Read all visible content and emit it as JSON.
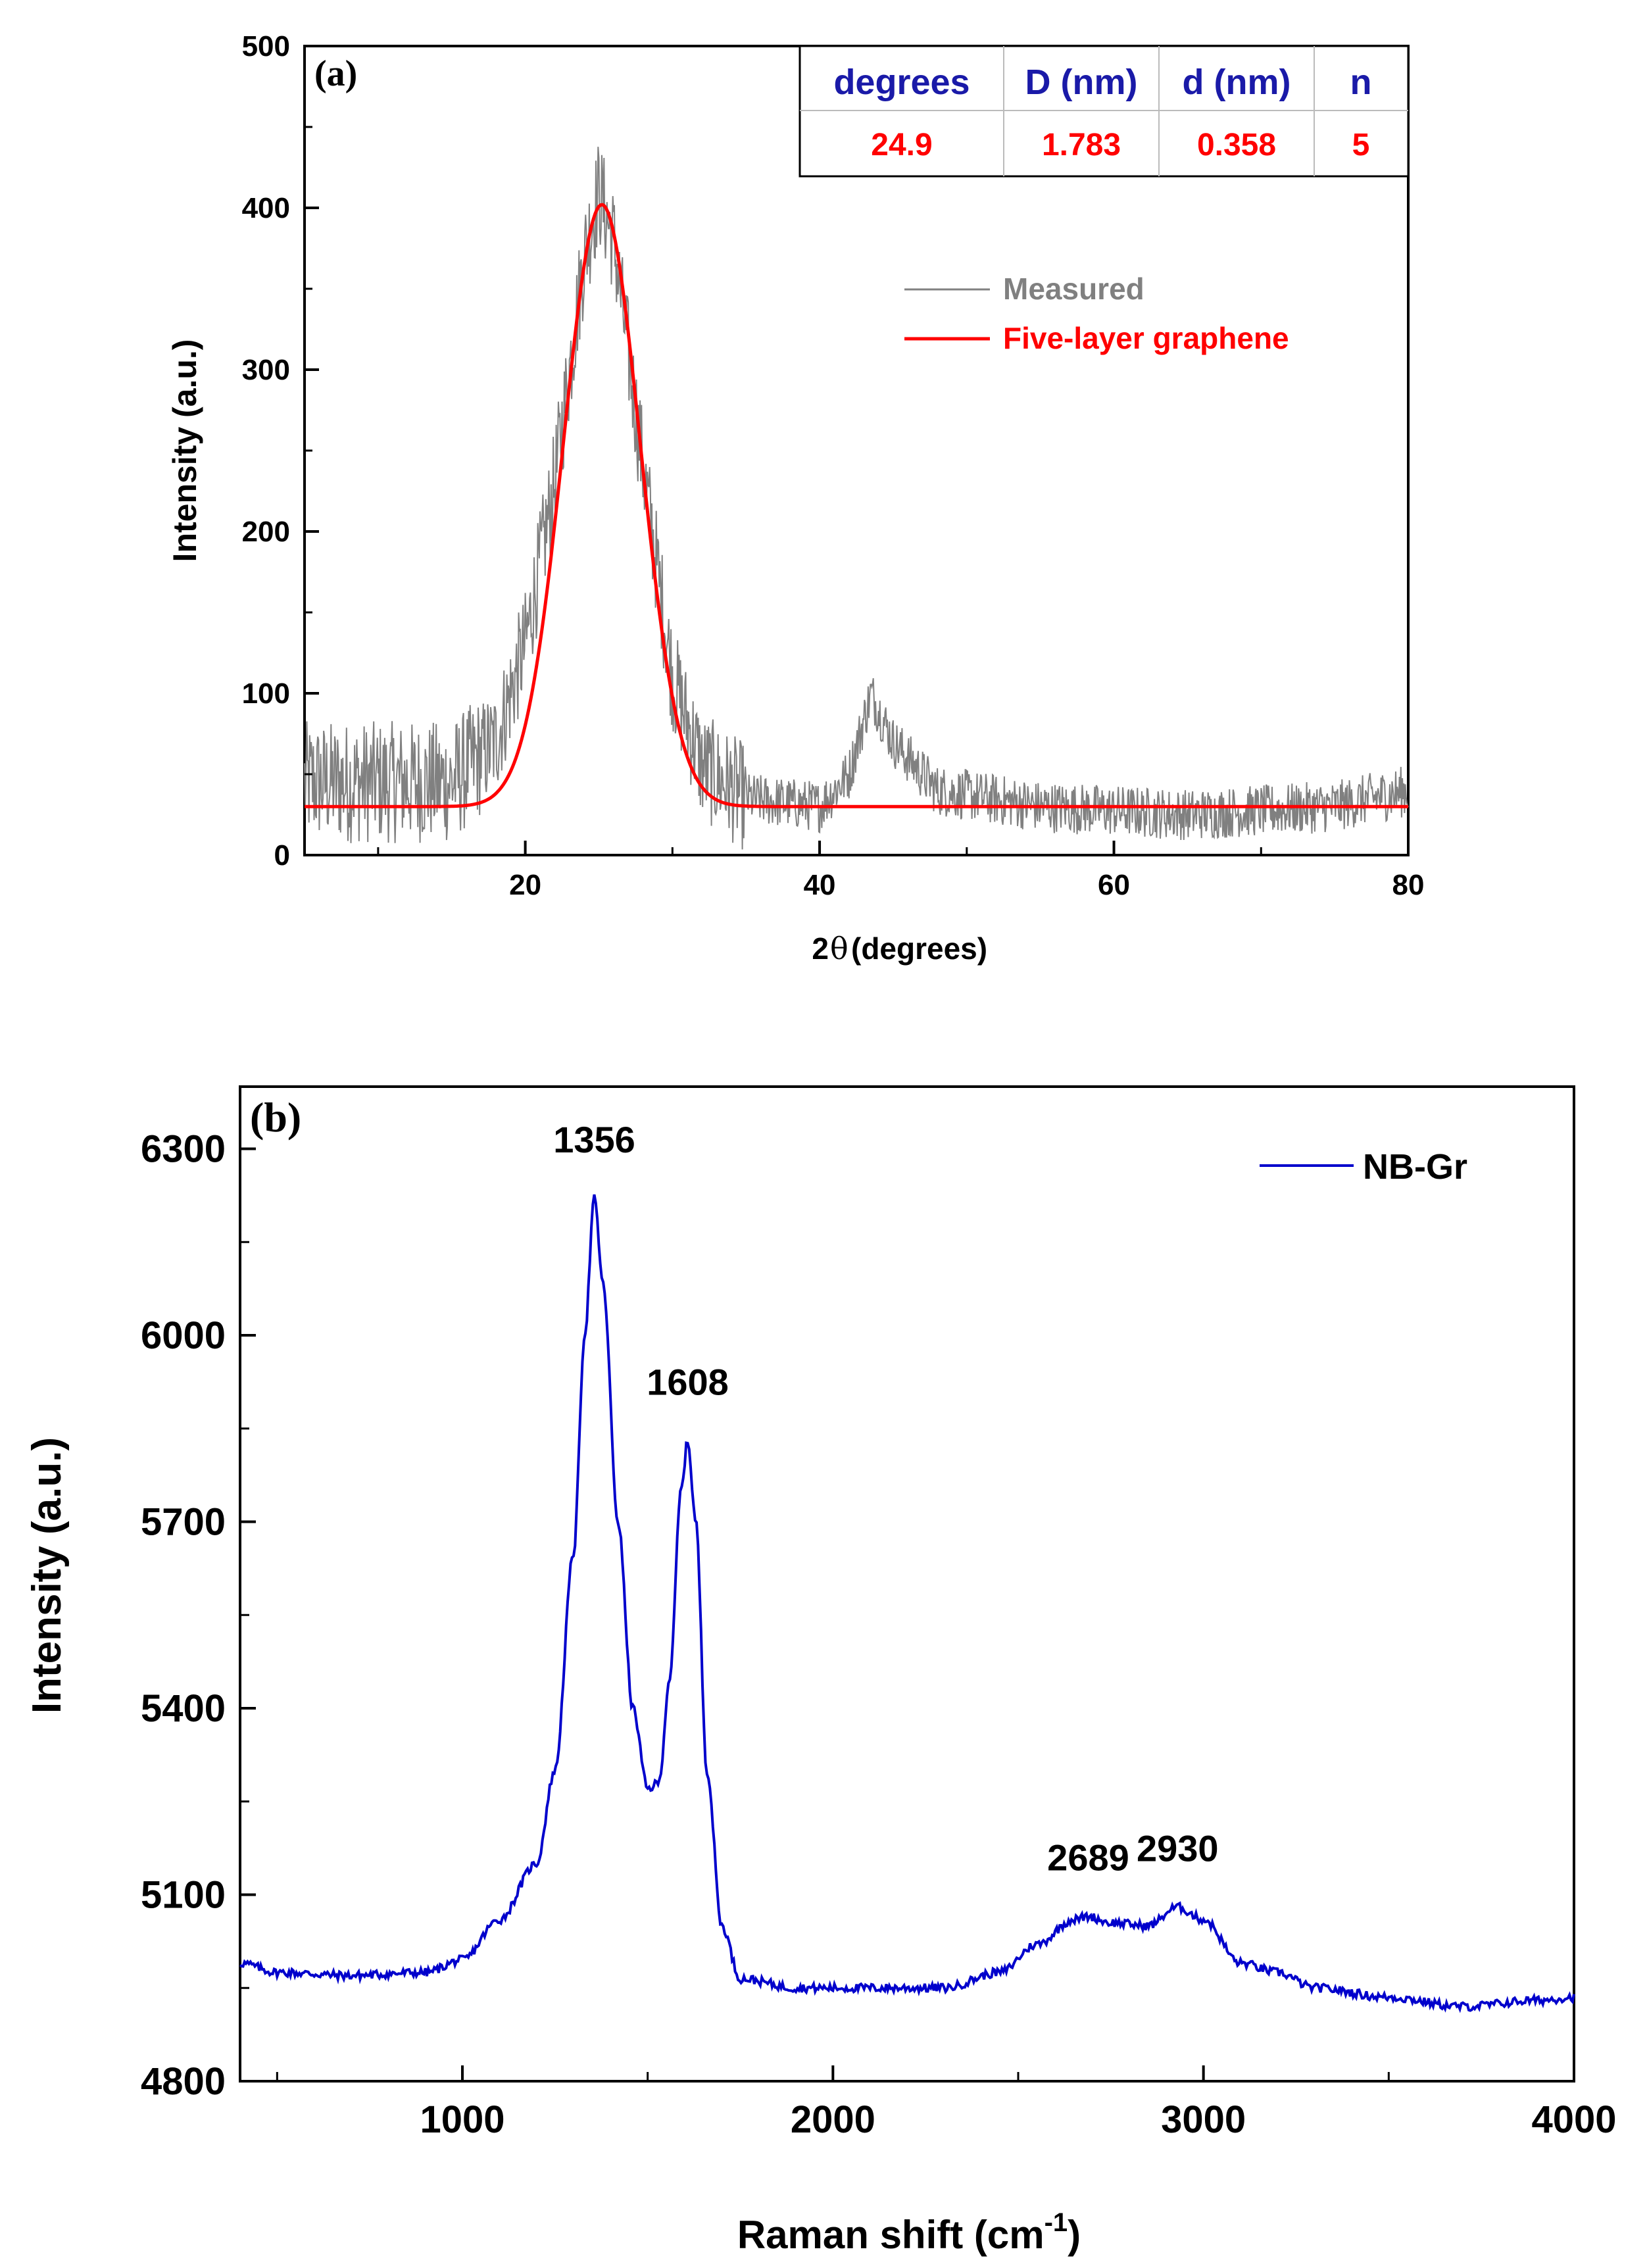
{
  "chart_data": [
    {
      "panel": "(a)",
      "type": "line",
      "xlabel_main": "2",
      "xlabel_theta": "θ",
      "xlabel_units": "(degrees)",
      "ylabel": "Intensity (a.u.)",
      "xlim": [
        5,
        80
      ],
      "ylim": [
        0,
        500
      ],
      "xticks": [
        20,
        40,
        60,
        80
      ],
      "xtick_labels": [
        "20",
        "40",
        "60",
        "80"
      ],
      "yticks": [
        0,
        100,
        200,
        300,
        400,
        500
      ],
      "ytick_labels": [
        "0",
        "100",
        "200",
        "300",
        "400",
        "500"
      ],
      "table": {
        "headers": [
          "degrees",
          "D (nm)",
          "d (nm)",
          "n"
        ],
        "values": [
          "24.9",
          "1.783",
          "0.358",
          "5"
        ]
      },
      "series": [
        {
          "name": "Measured",
          "color": "#808080",
          "description_points": {
            "x": [
              5,
              10,
              15,
              18,
              20,
              22,
              24,
              25,
              26,
              28,
              30,
              32,
              35,
              40,
              42,
              43.5,
              45,
              48,
              55,
              65,
              75,
              80
            ],
            "y": [
              45,
              45,
              45,
              70,
              130,
              230,
              370,
              410,
              380,
              240,
              110,
              55,
              35,
              30,
              50,
              100,
              70,
              40,
              30,
              25,
              30,
              40
            ]
          }
        },
        {
          "name": "Five-layer graphene",
          "color": "#ff0000",
          "fit": {
            "baseline": 30,
            "amplitude": 372,
            "center": 25.2,
            "sigma": 2.6
          }
        }
      ]
    },
    {
      "panel": "(b)",
      "type": "line",
      "xlabel": "Raman shift (cm",
      "xlabel_sup": "-1",
      "xlabel_close": ")",
      "ylabel": "Intensity (a.u.)",
      "xlim": [
        400,
        4000
      ],
      "ylim": [
        4800,
        6400
      ],
      "xticks": [
        1000,
        2000,
        3000,
        4000
      ],
      "xtick_labels": [
        "1000",
        "2000",
        "3000",
        "4000"
      ],
      "yticks": [
        4800,
        5100,
        5400,
        5700,
        6000,
        6300
      ],
      "ytick_labels": [
        "4800",
        "5100",
        "5400",
        "5700",
        "6000",
        "6300"
      ],
      "series": [
        {
          "name": "NB-Gr",
          "color": "#0000cc",
          "x": [
            400,
            500,
            700,
            900,
            1000,
            1100,
            1200,
            1250,
            1300,
            1330,
            1356,
            1380,
            1420,
            1460,
            1500,
            1530,
            1560,
            1590,
            1608,
            1630,
            1660,
            1700,
            1750,
            1900,
            2100,
            2300,
            2450,
            2550,
            2650,
            2689,
            2750,
            2850,
            2930,
            3000,
            3100,
            3200,
            3300,
            3500,
            3700,
            3900,
            4000
          ],
          "y": [
            4990,
            4975,
            4970,
            4975,
            4995,
            5060,
            5150,
            5300,
            5650,
            6000,
            6220,
            6080,
            5700,
            5400,
            5270,
            5280,
            5450,
            5750,
            5830,
            5700,
            5300,
            5050,
            4965,
            4950,
            4950,
            4950,
            4975,
            5020,
            5060,
            5065,
            5055,
            5050,
            5080,
            5060,
            4990,
            4975,
            4950,
            4935,
            4920,
            4930,
            4935
          ]
        }
      ],
      "peak_labels": [
        {
          "x": 1356,
          "y": 6220,
          "text": "1356"
        },
        {
          "x": 1608,
          "y": 5830,
          "text": "1608"
        },
        {
          "x": 2689,
          "y": 5065,
          "text": "2689"
        },
        {
          "x": 2930,
          "y": 5080,
          "text": "2930"
        }
      ]
    }
  ]
}
